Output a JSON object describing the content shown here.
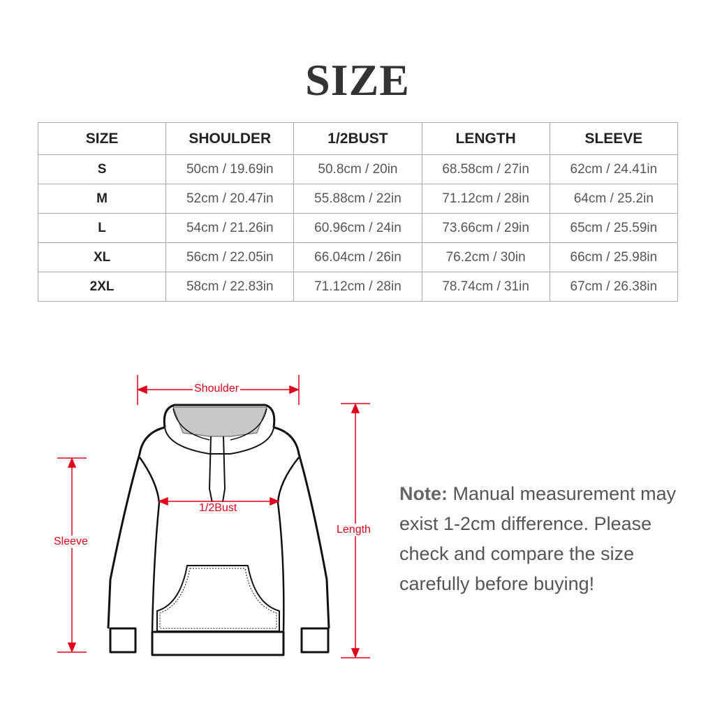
{
  "title": "SIZE",
  "table": {
    "headers": [
      "SIZE",
      "SHOULDER",
      "1/2BUST",
      "LENGTH",
      "SLEEVE"
    ],
    "rows": [
      [
        "S",
        "50cm / 19.69in",
        "50.8cm / 20in",
        "68.58cm / 27in",
        "62cm / 24.41in"
      ],
      [
        "M",
        "52cm / 20.47in",
        "55.88cm / 22in",
        "71.12cm / 28in",
        "64cm / 25.2in"
      ],
      [
        "L",
        "54cm / 21.26in",
        "60.96cm / 24in",
        "73.66cm / 29in",
        "65cm / 25.59in"
      ],
      [
        "XL",
        "56cm / 22.05in",
        "66.04cm / 26in",
        "76.2cm / 30in",
        "66cm / 25.98in"
      ],
      [
        "2XL",
        "58cm / 22.83in",
        "71.12cm / 28in",
        "78.74cm / 31in",
        "67cm / 26.38in"
      ]
    ]
  },
  "diagram": {
    "shoulder": "Shoulder",
    "bust": "1/2Bust",
    "sleeve": "Sleeve",
    "length": "Length",
    "annotation_color": "#e0001b"
  },
  "note": {
    "label": "Note:",
    "text": "Manual measurement may exist 1-2cm difference. Please check and compare the size carefully before buying!"
  }
}
